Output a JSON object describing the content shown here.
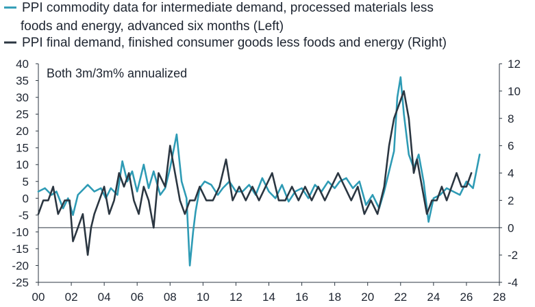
{
  "chart_data": {
    "type": "line",
    "annotation": "Both 3m/3m% annualized",
    "legend": [
      {
        "key": "left",
        "lines": [
          "PPI commodity data for intermediate demand, processed materials less",
          "foods and energy, advanced six months (Left)"
        ],
        "color": "#2e9bb5"
      },
      {
        "key": "right",
        "lines": [
          "PPI final demand, finished consumer goods less foods and energy (Right)"
        ],
        "color": "#2b3641"
      }
    ],
    "x_axis": {
      "range": [
        2000,
        2028
      ],
      "ticks": [
        2000,
        2002,
        2004,
        2006,
        2008,
        2010,
        2012,
        2014,
        2016,
        2018,
        2020,
        2022,
        2024,
        2026,
        2028
      ],
      "tick_labels": [
        "00",
        "02",
        "04",
        "06",
        "08",
        "10",
        "12",
        "14",
        "16",
        "18",
        "20",
        "22",
        "24",
        "26",
        "28"
      ]
    },
    "y_left": {
      "range": [
        -25,
        40
      ],
      "ticks": [
        -25,
        -20,
        -15,
        -10,
        -5,
        0,
        5,
        10,
        15,
        20,
        25,
        30,
        35,
        40
      ],
      "tick_labels": [
        "-25",
        "-20",
        "-15",
        "-10",
        "-5",
        "0",
        "5",
        "10",
        "15",
        "20",
        "25",
        "30",
        "35",
        "40"
      ]
    },
    "y_right": {
      "range": [
        -4,
        12
      ],
      "ticks": [
        -4,
        -2,
        0,
        2,
        4,
        6,
        8,
        10,
        12
      ],
      "tick_labels": [
        "-4",
        "-2",
        "0",
        "2",
        "4",
        "6",
        "8",
        "10",
        "12"
      ]
    },
    "series": [
      {
        "key": "left",
        "axis": "left",
        "color": "#2e9bb5",
        "x": [
          2000.0,
          2000.4,
          2000.8,
          2001.1,
          2001.5,
          2001.8,
          2002.1,
          2002.4,
          2002.8,
          2003.0,
          2003.4,
          2003.8,
          2004.1,
          2004.4,
          2004.8,
          2005.1,
          2005.4,
          2005.7,
          2006.0,
          2006.4,
          2006.7,
          2007.0,
          2007.4,
          2007.7,
          2008.0,
          2008.4,
          2008.7,
          2009.0,
          2009.2,
          2009.4,
          2009.55,
          2009.8,
          2010.1,
          2010.5,
          2010.9,
          2011.2,
          2011.6,
          2012.0,
          2012.4,
          2012.8,
          2013.2,
          2013.6,
          2014.0,
          2014.4,
          2014.8,
          2015.2,
          2015.6,
          2016.0,
          2016.4,
          2016.8,
          2017.2,
          2017.6,
          2018.0,
          2018.3,
          2018.7,
          2019.1,
          2019.5,
          2019.9,
          2020.3,
          2020.7,
          2021.0,
          2021.3,
          2021.6,
          2021.8,
          2022.0,
          2022.2,
          2022.5,
          2022.8,
          2023.1,
          2023.4,
          2023.7,
          2024.0,
          2024.4,
          2024.8,
          2025.2,
          2025.6,
          2026.0,
          2026.4,
          2026.8
        ],
        "values": [
          2,
          3,
          1,
          2,
          -3,
          0,
          -5,
          1,
          3,
          4,
          2,
          3,
          0,
          3,
          1,
          11,
          5,
          8,
          2,
          10,
          3,
          8,
          1,
          3,
          9,
          19,
          5,
          0,
          -20,
          -10,
          -4,
          3,
          5,
          4,
          1,
          3,
          5,
          2,
          2,
          4,
          1,
          6,
          2,
          0,
          4,
          -1,
          2,
          3,
          0,
          4,
          2,
          5,
          3,
          5,
          6,
          3,
          5,
          -2,
          1,
          -3,
          2,
          8,
          14,
          30,
          36,
          25,
          13,
          9,
          13,
          5,
          -7,
          0,
          1,
          3,
          2,
          1,
          5,
          3,
          13
        ]
      },
      {
        "key": "right",
        "axis": "right",
        "color": "#2b3641",
        "x": [
          2000.0,
          2000.3,
          2000.6,
          2000.9,
          2001.2,
          2001.6,
          2001.9,
          2002.1,
          2002.4,
          2002.7,
          2003.0,
          2003.2,
          2003.4,
          2003.7,
          2004.0,
          2004.3,
          2004.6,
          2004.9,
          2005.2,
          2005.5,
          2005.8,
          2006.1,
          2006.4,
          2006.7,
          2007.0,
          2007.3,
          2007.7,
          2008.0,
          2008.3,
          2008.6,
          2008.9,
          2009.2,
          2009.5,
          2009.8,
          2010.2,
          2010.6,
          2011.0,
          2011.4,
          2011.8,
          2012.2,
          2012.6,
          2013.0,
          2013.4,
          2013.8,
          2014.2,
          2014.6,
          2015.0,
          2015.4,
          2015.8,
          2016.2,
          2016.6,
          2017.0,
          2017.4,
          2017.8,
          2018.2,
          2018.6,
          2019.0,
          2019.4,
          2019.8,
          2020.2,
          2020.6,
          2021.0,
          2021.3,
          2021.6,
          2021.9,
          2022.2,
          2022.5,
          2022.8,
          2023.0,
          2023.3,
          2023.6,
          2023.9,
          2024.2,
          2024.5,
          2024.8,
          2025.1,
          2025.4,
          2025.7,
          2026.0,
          2026.3
        ],
        "values": [
          1,
          2,
          2,
          3,
          1,
          2,
          2,
          -1,
          0,
          1,
          -2,
          0,
          1,
          2,
          3,
          1,
          2,
          4,
          3,
          4,
          2,
          1,
          3,
          2,
          0,
          4,
          3,
          6,
          4,
          2,
          1,
          2,
          2,
          3,
          2,
          2,
          3,
          5,
          2,
          3,
          2,
          3,
          2,
          3,
          4,
          2,
          2,
          3,
          2,
          3,
          2,
          3,
          2,
          3,
          4,
          3,
          2,
          3,
          1,
          2,
          1,
          3,
          6,
          8,
          9,
          10,
          8,
          4,
          5,
          3,
          1,
          2,
          2,
          3,
          2,
          3,
          4,
          3,
          3,
          4
        ]
      }
    ]
  }
}
